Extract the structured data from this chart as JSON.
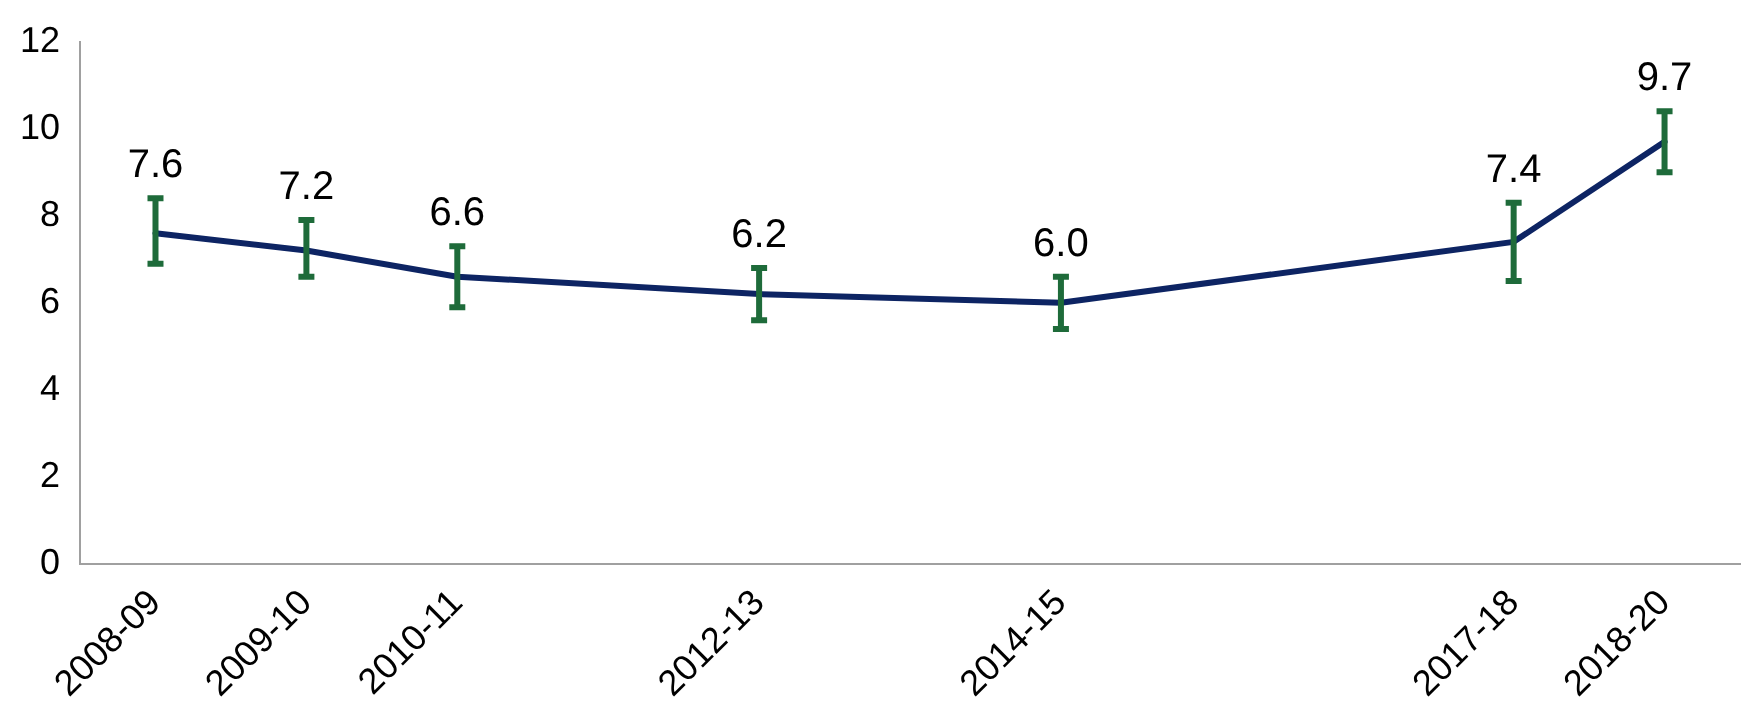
{
  "chart_data": {
    "type": "line",
    "categories": [
      "2008-09",
      "2009-10",
      "2010-11",
      null,
      "2012-13",
      null,
      "2014-15",
      null,
      null,
      "2017-18",
      "2018-20"
    ],
    "series": [
      {
        "color": "#0d2463",
        "values": [
          7.6,
          7.2,
          6.6,
          null,
          6.2,
          null,
          6.0,
          null,
          null,
          7.4,
          9.7
        ],
        "errors": [
          [
            6.9,
            8.4
          ],
          [
            6.6,
            7.9
          ],
          [
            5.9,
            7.3
          ],
          null,
          [
            5.6,
            6.8
          ],
          null,
          [
            5.4,
            6.6
          ],
          null,
          null,
          [
            6.5,
            8.3
          ],
          [
            9.0,
            10.4
          ]
        ],
        "value_labels": [
          "7.6",
          "7.2",
          "6.6",
          null,
          "6.2",
          null,
          "6.0",
          null,
          null,
          "7.4",
          "9.7"
        ]
      }
    ],
    "ylim": [
      0,
      12
    ],
    "yticks": [
      0,
      2,
      4,
      6,
      8,
      10,
      12
    ],
    "grid": false,
    "legend": false,
    "marker": "none",
    "line_style": "solid"
  }
}
